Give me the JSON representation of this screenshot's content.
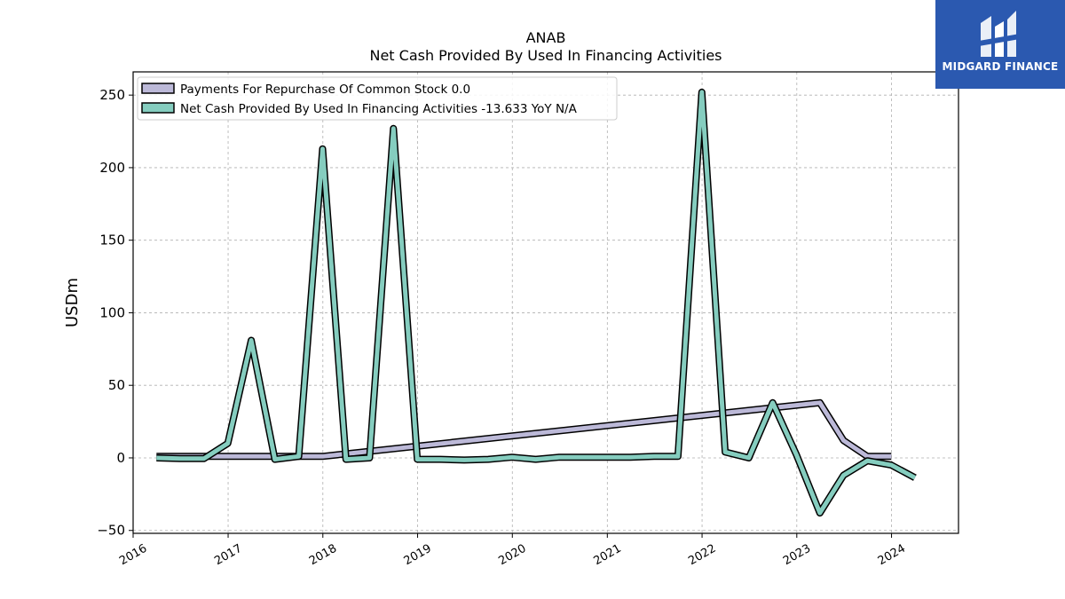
{
  "logo": {
    "text": "MIDGARD FINANCE",
    "bg_color": "#2b59b0"
  },
  "chart_data": {
    "type": "line",
    "title": "ANAB",
    "subtitle": "Net Cash Provided By Used In Financing Activities",
    "ylabel": "USDm",
    "xlabel": "",
    "ylim": [
      -52,
      266
    ],
    "xlim": [
      "2016-01-01",
      "2024-09-15"
    ],
    "y_ticks": [
      -50,
      0,
      50,
      100,
      150,
      200,
      250
    ],
    "x_ticks": [
      "2016",
      "2017",
      "2018",
      "2019",
      "2020",
      "2021",
      "2022",
      "2023",
      "2024"
    ],
    "grid": true,
    "legend_position": "top-left",
    "series": [
      {
        "name": "Payments For Repurchase Of Common Stock",
        "legend_label": "Payments For Repurchase Of Common Stock  0.0",
        "color": "#bcb9d8",
        "points": [
          {
            "x": "2016-03-31",
            "y": 1.0
          },
          {
            "x": "2016-06-30",
            "y": 1.0
          },
          {
            "x": "2016-09-30",
            "y": 1.0
          },
          {
            "x": "2016-12-31",
            "y": 1.0
          },
          {
            "x": "2017-03-31",
            "y": 1.0
          },
          {
            "x": "2017-06-30",
            "y": 1.0
          },
          {
            "x": "2017-09-30",
            "y": 1.0
          },
          {
            "x": "2017-12-31",
            "y": 1.0
          },
          {
            "x": "2023-03-31",
            "y": 38.0
          },
          {
            "x": "2023-06-30",
            "y": 12.0
          },
          {
            "x": "2023-09-30",
            "y": 1.0
          },
          {
            "x": "2023-12-31",
            "y": 1.0
          }
        ]
      },
      {
        "name": "Net Cash Provided By Used In Financing Activities",
        "legend_label": "Net Cash Provided By Used In Financing Activities  -13.633 YoY N/A",
        "color": "#85cdbf",
        "points": [
          {
            "x": "2016-03-31",
            "y": 0.0
          },
          {
            "x": "2016-06-30",
            "y": -0.5
          },
          {
            "x": "2016-09-30",
            "y": -0.5
          },
          {
            "x": "2016-12-31",
            "y": 10.0
          },
          {
            "x": "2017-03-31",
            "y": 81.0
          },
          {
            "x": "2017-06-30",
            "y": -1.0
          },
          {
            "x": "2017-09-30",
            "y": 1.0
          },
          {
            "x": "2017-12-31",
            "y": 213.0
          },
          {
            "x": "2018-03-31",
            "y": -1.0
          },
          {
            "x": "2018-06-30",
            "y": 0.0
          },
          {
            "x": "2018-09-30",
            "y": 227.0
          },
          {
            "x": "2018-12-31",
            "y": -1.0
          },
          {
            "x": "2019-03-31",
            "y": -1.0
          },
          {
            "x": "2019-06-30",
            "y": -1.5
          },
          {
            "x": "2019-09-30",
            "y": -1.0
          },
          {
            "x": "2019-12-31",
            "y": 0.5
          },
          {
            "x": "2020-03-31",
            "y": -1.0
          },
          {
            "x": "2020-06-30",
            "y": 0.5
          },
          {
            "x": "2020-09-30",
            "y": 0.5
          },
          {
            "x": "2020-12-31",
            "y": 0.5
          },
          {
            "x": "2021-03-31",
            "y": 0.5
          },
          {
            "x": "2021-06-30",
            "y": 1.0
          },
          {
            "x": "2021-09-30",
            "y": 1.0
          },
          {
            "x": "2021-12-31",
            "y": 252.0
          },
          {
            "x": "2022-03-31",
            "y": 4.0
          },
          {
            "x": "2022-06-30",
            "y": 0.0
          },
          {
            "x": "2022-09-30",
            "y": 38.0
          },
          {
            "x": "2022-12-31",
            "y": 2.0
          },
          {
            "x": "2023-03-31",
            "y": -38.0
          },
          {
            "x": "2023-06-30",
            "y": -12.0
          },
          {
            "x": "2023-09-30",
            "y": -2.0
          },
          {
            "x": "2023-12-31",
            "y": -5.0
          },
          {
            "x": "2024-03-31",
            "y": -13.633
          }
        ]
      }
    ]
  }
}
